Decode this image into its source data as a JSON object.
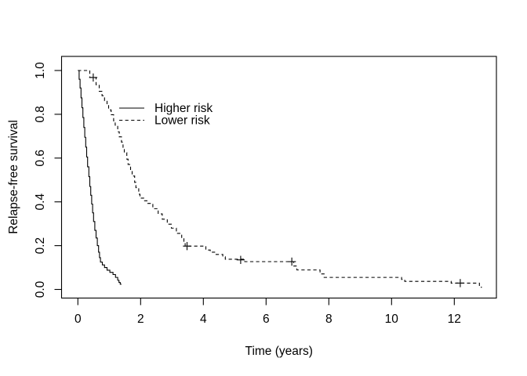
{
  "figure": {
    "background": "#ffffff",
    "foreground": "#000000"
  },
  "chart_data": {
    "type": "line",
    "subtype": "kaplan-meier-step",
    "title": "",
    "xlabel": "Time (years)",
    "ylabel": "Relapse-free survival",
    "xlim": [
      -0.5,
      13.3
    ],
    "ylim": [
      -0.04,
      1.04
    ],
    "x_ticks": [
      0,
      2,
      4,
      6,
      8,
      10,
      12
    ],
    "y_ticks": [
      {
        "value": 0.0,
        "label": "0.0"
      },
      {
        "value": 0.2,
        "label": "0.2"
      },
      {
        "value": 0.4,
        "label": "0.4"
      },
      {
        "value": 0.6,
        "label": "0.6"
      },
      {
        "value": 0.8,
        "label": "0.8"
      },
      {
        "value": 1.0,
        "label": "1.0"
      }
    ],
    "grid": false,
    "legend": {
      "position": "upper-left-inset",
      "entries": [
        {
          "label": "Higher risk",
          "line_style": "solid"
        },
        {
          "label": "Lower risk",
          "line_style": "dashed"
        }
      ]
    },
    "series": [
      {
        "name": "Higher risk",
        "line_style": "solid",
        "color": "#000000",
        "t_end": 1.39,
        "points": [
          [
            0.0,
            1.0
          ],
          [
            0.04,
            0.96
          ],
          [
            0.07,
            0.92
          ],
          [
            0.1,
            0.875
          ],
          [
            0.13,
            0.83
          ],
          [
            0.16,
            0.785
          ],
          [
            0.19,
            0.74
          ],
          [
            0.22,
            0.695
          ],
          [
            0.25,
            0.65
          ],
          [
            0.28,
            0.605
          ],
          [
            0.31,
            0.56
          ],
          [
            0.35,
            0.515
          ],
          [
            0.38,
            0.47
          ],
          [
            0.41,
            0.43
          ],
          [
            0.44,
            0.39
          ],
          [
            0.47,
            0.35
          ],
          [
            0.5,
            0.31
          ],
          [
            0.54,
            0.27
          ],
          [
            0.58,
            0.235
          ],
          [
            0.62,
            0.2
          ],
          [
            0.66,
            0.17
          ],
          [
            0.69,
            0.145
          ],
          [
            0.72,
            0.125
          ],
          [
            0.78,
            0.112
          ],
          [
            0.85,
            0.1
          ],
          [
            0.93,
            0.088
          ],
          [
            1.02,
            0.078
          ],
          [
            1.12,
            0.068
          ],
          [
            1.2,
            0.055
          ],
          [
            1.27,
            0.042
          ],
          [
            1.31,
            0.032
          ],
          [
            1.35,
            0.024
          ]
        ],
        "censor_marks": []
      },
      {
        "name": "Lower risk",
        "line_style": "dashed",
        "color": "#000000",
        "t_end": 12.88,
        "points": [
          [
            0.0,
            1.0
          ],
          [
            0.38,
            0.968
          ],
          [
            0.58,
            0.935
          ],
          [
            0.68,
            0.905
          ],
          [
            0.77,
            0.885
          ],
          [
            0.85,
            0.862
          ],
          [
            0.93,
            0.84
          ],
          [
            0.98,
            0.82
          ],
          [
            1.06,
            0.798
          ],
          [
            1.14,
            0.77
          ],
          [
            1.19,
            0.75
          ],
          [
            1.27,
            0.72
          ],
          [
            1.32,
            0.697
          ],
          [
            1.39,
            0.673
          ],
          [
            1.44,
            0.649
          ],
          [
            1.48,
            0.625
          ],
          [
            1.56,
            0.595
          ],
          [
            1.6,
            0.571
          ],
          [
            1.68,
            0.542
          ],
          [
            1.73,
            0.518
          ],
          [
            1.81,
            0.489
          ],
          [
            1.85,
            0.465
          ],
          [
            1.94,
            0.435
          ],
          [
            1.98,
            0.417
          ],
          [
            2.1,
            0.405
          ],
          [
            2.23,
            0.393
          ],
          [
            2.39,
            0.369
          ],
          [
            2.56,
            0.345
          ],
          [
            2.69,
            0.321
          ],
          [
            2.85,
            0.298
          ],
          [
            2.98,
            0.28
          ],
          [
            3.14,
            0.256
          ],
          [
            3.31,
            0.232
          ],
          [
            3.38,
            0.214
          ],
          [
            3.42,
            0.198
          ],
          [
            4.08,
            0.18
          ],
          [
            4.22,
            0.17
          ],
          [
            4.38,
            0.16
          ],
          [
            4.62,
            0.149
          ],
          [
            4.7,
            0.138
          ],
          [
            5.32,
            0.127
          ],
          [
            6.88,
            0.107
          ],
          [
            6.98,
            0.089
          ],
          [
            7.72,
            0.071
          ],
          [
            7.85,
            0.055
          ],
          [
            10.32,
            0.046
          ],
          [
            10.42,
            0.037
          ],
          [
            11.9,
            0.029
          ],
          [
            12.8,
            0.01
          ]
        ],
        "censor_marks": [
          [
            0.49,
            0.968
          ],
          [
            3.48,
            0.198
          ],
          [
            5.19,
            0.135
          ],
          [
            6.82,
            0.127
          ],
          [
            12.19,
            0.029
          ]
        ]
      }
    ]
  }
}
